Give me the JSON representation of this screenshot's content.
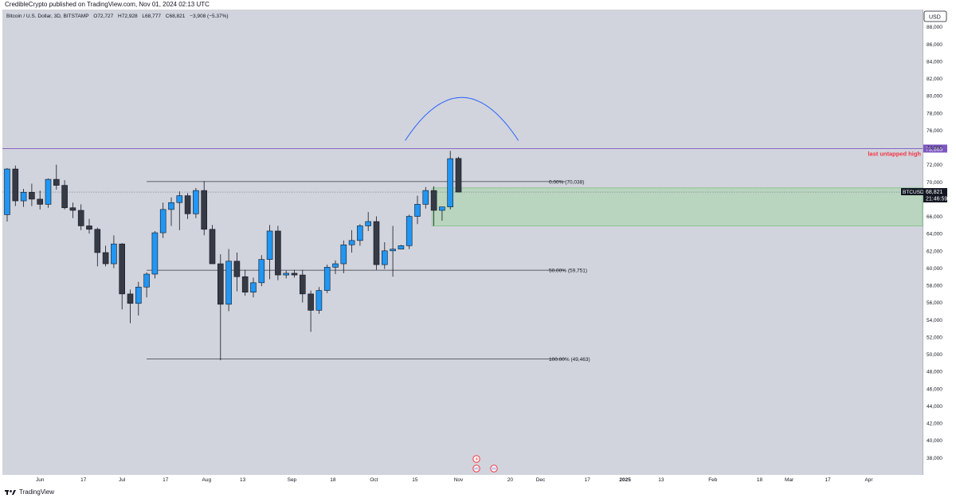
{
  "header": {
    "publisher_line": "CredibleCrypto published on TradingView.com, Nov 01, 2024 02:13 UTC"
  },
  "legend": {
    "symbol": "Bitcoin / U.S. Dollar, 3D, BITSTAMP",
    "o_label": "O",
    "o_value": "72,727",
    "h_label": "H",
    "h_value": "72,928",
    "l_label": "L",
    "l_value": "68,777",
    "c_label": "C",
    "c_value": "68,821",
    "change": "−3,908 (−5.37%)"
  },
  "currency_label": "USD",
  "footer": {
    "brand": "TradingView"
  },
  "colors": {
    "bull": "#2196f3",
    "bear": "#363a45",
    "chart_bg": "#d1d4dc",
    "arc": "#2962ff",
    "high_line": "#7e57c2",
    "zone": "#a5d6a7",
    "annotation": "#f23645"
  },
  "chart_data": {
    "type": "candlestick",
    "symbol": "BTCUSD",
    "interval": "3D",
    "exchange": "BITSTAMP",
    "ylim": [
      36000,
      90000
    ],
    "y_ticks": [
      38000,
      40000,
      42000,
      44000,
      46000,
      48000,
      50000,
      52000,
      54000,
      56000,
      58000,
      60000,
      62000,
      64000,
      66000,
      68000,
      70000,
      72000,
      74000,
      76000,
      78000,
      80000,
      82000,
      84000,
      86000,
      88000
    ],
    "y_tick_labels": [
      "38,000",
      "40,000",
      "42,000",
      "44,000",
      "46,000",
      "48,000",
      "50,000",
      "52,000",
      "54,000",
      "56,000",
      "58,000",
      "60,000",
      "62,000",
      "64,000",
      "66,000",
      "68,000",
      "70,000",
      "72,000",
      "74,000",
      "76,000",
      "78,000",
      "80,000",
      "82,000",
      "84,000",
      "86,000",
      "88,000"
    ],
    "x_ticks": [
      {
        "label": "Jun",
        "bar": 4
      },
      {
        "label": "17",
        "bar": 9.3
      },
      {
        "label": "Jul",
        "bar": 14
      },
      {
        "label": "17",
        "bar": 19.3
      },
      {
        "label": "Aug",
        "bar": 24.3
      },
      {
        "label": "13",
        "bar": 28.7
      },
      {
        "label": "Sep",
        "bar": 34.7
      },
      {
        "label": "18",
        "bar": 39.7
      },
      {
        "label": "Oct",
        "bar": 44.7
      },
      {
        "label": "15",
        "bar": 49.7
      },
      {
        "label": "Nov",
        "bar": 55
      },
      {
        "label": "20",
        "bar": 61.3
      },
      {
        "label": "Dec",
        "bar": 65
      },
      {
        "label": "17",
        "bar": 70.7
      },
      {
        "label": "2025",
        "bar": 75.3
      },
      {
        "label": "13",
        "bar": 79.7
      },
      {
        "label": "Feb",
        "bar": 86
      },
      {
        "label": "18",
        "bar": 91.7
      },
      {
        "label": "Mar",
        "bar": 95.3
      },
      {
        "label": "17",
        "bar": 100
      },
      {
        "label": "Apr",
        "bar": 105
      }
    ],
    "candles": [
      {
        "o": 66200,
        "h": 71600,
        "l": 65400,
        "c": 71500
      },
      {
        "o": 71500,
        "h": 71900,
        "l": 67200,
        "c": 67800
      },
      {
        "o": 67800,
        "h": 69200,
        "l": 67100,
        "c": 68800
      },
      {
        "o": 68800,
        "h": 69800,
        "l": 67200,
        "c": 68000
      },
      {
        "o": 68000,
        "h": 69000,
        "l": 66800,
        "c": 67400
      },
      {
        "o": 67400,
        "h": 70400,
        "l": 67000,
        "c": 70300
      },
      {
        "o": 70300,
        "h": 72000,
        "l": 69100,
        "c": 69600
      },
      {
        "o": 69600,
        "h": 70200,
        "l": 66800,
        "c": 67000
      },
      {
        "o": 67000,
        "h": 67600,
        "l": 65800,
        "c": 66700
      },
      {
        "o": 66700,
        "h": 67400,
        "l": 64400,
        "c": 64900
      },
      {
        "o": 64900,
        "h": 65700,
        "l": 64000,
        "c": 64500
      },
      {
        "o": 64500,
        "h": 64700,
        "l": 60200,
        "c": 61800
      },
      {
        "o": 61800,
        "h": 62600,
        "l": 60200,
        "c": 60500
      },
      {
        "o": 60500,
        "h": 63800,
        "l": 60000,
        "c": 62800
      },
      {
        "o": 62800,
        "h": 62900,
        "l": 55200,
        "c": 57000
      },
      {
        "o": 57000,
        "h": 57500,
        "l": 53600,
        "c": 55900
      },
      {
        "o": 55900,
        "h": 58400,
        "l": 54500,
        "c": 57800
      },
      {
        "o": 57800,
        "h": 59500,
        "l": 56600,
        "c": 59300
      },
      {
        "o": 59300,
        "h": 64300,
        "l": 58800,
        "c": 64100
      },
      {
        "o": 64100,
        "h": 67600,
        "l": 63500,
        "c": 66800
      },
      {
        "o": 66800,
        "h": 68200,
        "l": 64900,
        "c": 67600
      },
      {
        "o": 67600,
        "h": 68900,
        "l": 64400,
        "c": 68400
      },
      {
        "o": 68400,
        "h": 68700,
        "l": 65700,
        "c": 66300
      },
      {
        "o": 66300,
        "h": 69300,
        "l": 65800,
        "c": 69000
      },
      {
        "o": 69000,
        "h": 70100,
        "l": 63800,
        "c": 64500
      },
      {
        "o": 64500,
        "h": 65000,
        "l": 60500,
        "c": 60500
      },
      {
        "o": 60500,
        "h": 61600,
        "l": 49300,
        "c": 55800
      },
      {
        "o": 55800,
        "h": 62200,
        "l": 55000,
        "c": 60800
      },
      {
        "o": 60800,
        "h": 61800,
        "l": 57300,
        "c": 59000
      },
      {
        "o": 59000,
        "h": 59800,
        "l": 56800,
        "c": 57200
      },
      {
        "o": 57200,
        "h": 58900,
        "l": 56600,
        "c": 58300
      },
      {
        "o": 58300,
        "h": 61500,
        "l": 57900,
        "c": 61000
      },
      {
        "o": 61000,
        "h": 65000,
        "l": 58700,
        "c": 64300
      },
      {
        "o": 64300,
        "h": 64900,
        "l": 58600,
        "c": 59200
      },
      {
        "o": 59200,
        "h": 59700,
        "l": 58800,
        "c": 59400
      },
      {
        "o": 59400,
        "h": 59800,
        "l": 58900,
        "c": 59200
      },
      {
        "o": 59200,
        "h": 59800,
        "l": 56000,
        "c": 57000
      },
      {
        "o": 57000,
        "h": 57400,
        "l": 52600,
        "c": 55100
      },
      {
        "o": 55100,
        "h": 57800,
        "l": 54700,
        "c": 57400
      },
      {
        "o": 57400,
        "h": 60400,
        "l": 57100,
        "c": 60100
      },
      {
        "o": 60100,
        "h": 60900,
        "l": 59300,
        "c": 60500
      },
      {
        "o": 60500,
        "h": 63200,
        "l": 59400,
        "c": 62700
      },
      {
        "o": 62700,
        "h": 64400,
        "l": 61800,
        "c": 63200
      },
      {
        "o": 63200,
        "h": 65100,
        "l": 62600,
        "c": 64900
      },
      {
        "o": 64900,
        "h": 66500,
        "l": 64300,
        "c": 65400
      },
      {
        "o": 65400,
        "h": 66000,
        "l": 59800,
        "c": 60400
      },
      {
        "o": 60400,
        "h": 63000,
        "l": 59900,
        "c": 62000
      },
      {
        "o": 62000,
        "h": 64900,
        "l": 59000,
        "c": 62200
      },
      {
        "o": 62200,
        "h": 62700,
        "l": 62300,
        "c": 62600
      },
      {
        "o": 62600,
        "h": 66200,
        "l": 62200,
        "c": 66000
      },
      {
        "o": 66000,
        "h": 68400,
        "l": 65100,
        "c": 67400
      },
      {
        "o": 67400,
        "h": 69400,
        "l": 66900,
        "c": 69000
      },
      {
        "o": 69000,
        "h": 69500,
        "l": 64900,
        "c": 66700
      },
      {
        "o": 66700,
        "h": 67000,
        "l": 65500,
        "c": 67100
      },
      {
        "o": 67100,
        "h": 73600,
        "l": 66800,
        "c": 72700
      },
      {
        "o": 72727,
        "h": 72928,
        "l": 68777,
        "c": 68821
      }
    ],
    "horizontal_levels": [
      {
        "name": "last untapped high",
        "value": 73869,
        "label": "73,869",
        "annotation": "last untapped high"
      },
      {
        "name": "fib-0",
        "value": 70038,
        "label": "0.00% (70,038)"
      },
      {
        "name": "fib-50",
        "value": 59751,
        "label": "50.00% (59,751)"
      },
      {
        "name": "fib-100",
        "value": 49463,
        "label": "100.00% (49,463)"
      }
    ],
    "zone": {
      "top": 69300,
      "bottom": 64900,
      "start_bar": 51.8
    },
    "current_price": {
      "symbol": "BTCUSD",
      "value": "68,821",
      "countdown": "21:46:59"
    },
    "arc": {
      "start_bar": 48.5,
      "end_bar": 62.3,
      "base": 74800,
      "peak": 79800
    }
  }
}
